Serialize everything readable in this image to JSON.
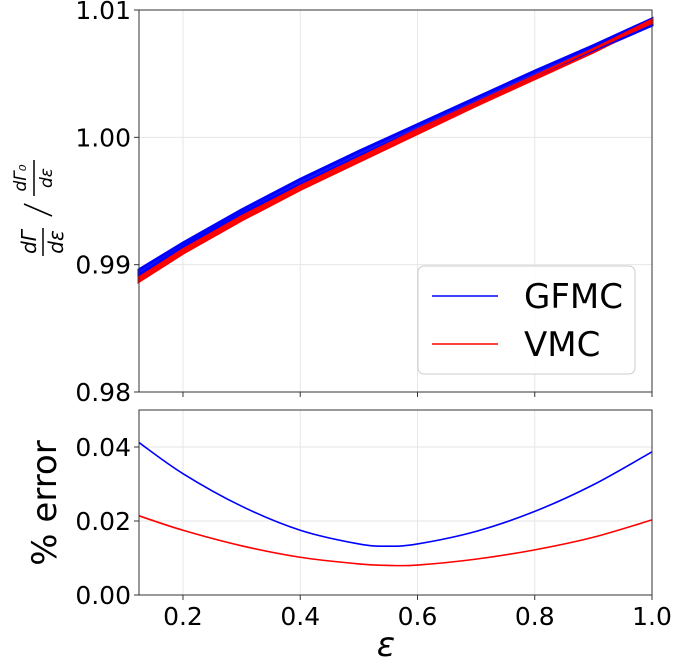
{
  "chart_data": [
    {
      "type": "line",
      "panel": "top",
      "xlim": [
        0.125,
        1.0
      ],
      "ylim": [
        0.98,
        1.01
      ],
      "yticks": [
        "0.98",
        "0.99",
        "1.00",
        "1.01"
      ],
      "ylabel_parts": {
        "num": "dΓ",
        "den": "dε",
        "num0": "dΓ₀",
        "den0": "dε"
      },
      "grid": true,
      "legend": {
        "placement": "lower-right",
        "entries": [
          "GFMC",
          "VMC"
        ]
      },
      "colors": {
        "GFMC": "#0000ff",
        "VMC": "#ff0000"
      },
      "x": [
        0.125,
        0.2,
        0.3,
        0.4,
        0.5,
        0.6,
        0.7,
        0.8,
        0.9,
        1.0
      ],
      "series": [
        {
          "name": "GFMC",
          "values": [
            0.9892,
            0.9914,
            0.994,
            0.9963,
            0.9985,
            1.0006,
            1.0027,
            1.0048,
            1.0068,
            1.0088
          ],
          "band": [
            0.9896,
            0.9917,
            0.9943,
            0.9967,
            0.9989,
            1.001,
            1.0031,
            1.0052,
            1.0072,
            1.0093
          ]
        },
        {
          "name": "VMC",
          "values": [
            0.989,
            0.9912,
            0.9938,
            0.9962,
            0.9984,
            1.0006,
            1.0027,
            1.0048,
            1.0069,
            1.009
          ],
          "band": [
            0.9887,
            0.9909,
            0.9935,
            0.9959,
            0.9981,
            1.0003,
            1.0025,
            1.0046,
            1.0067,
            1.0092
          ]
        }
      ]
    },
    {
      "type": "line",
      "panel": "bottom",
      "xlim": [
        0.125,
        1.0
      ],
      "ylim": [
        0.0,
        0.05
      ],
      "xticks": [
        "0.2",
        "0.4",
        "0.6",
        "0.8",
        "1.0"
      ],
      "yticks": [
        "0.00",
        "0.02",
        "0.04"
      ],
      "xlabel": "ε",
      "ylabel": "% error",
      "grid": true,
      "x": [
        0.125,
        0.2,
        0.3,
        0.4,
        0.5,
        0.55,
        0.6,
        0.7,
        0.8,
        0.9,
        1.0
      ],
      "series": [
        {
          "name": "GFMC",
          "values": [
            0.0412,
            0.0328,
            0.024,
            0.0175,
            0.0138,
            0.0132,
            0.0138,
            0.0172,
            0.0226,
            0.0298,
            0.0387
          ]
        },
        {
          "name": "VMC",
          "values": [
            0.0214,
            0.0175,
            0.0133,
            0.0102,
            0.0084,
            0.008,
            0.0081,
            0.0097,
            0.0122,
            0.0156,
            0.0203
          ]
        }
      ]
    }
  ]
}
